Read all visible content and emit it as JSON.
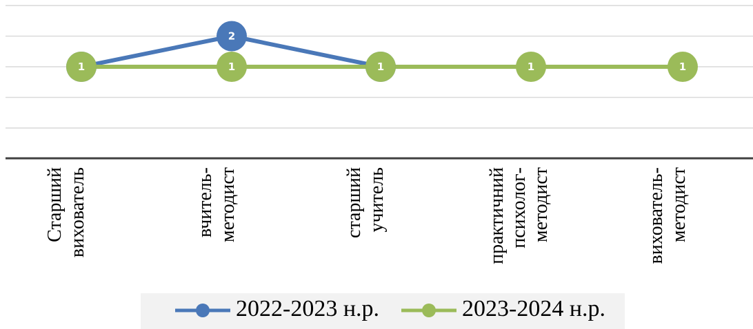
{
  "chart_data": {
    "type": "line",
    "categories": [
      [
        "Старший",
        "вихователь"
      ],
      [
        "вчитель-",
        "методист"
      ],
      [
        "старший",
        "учитель"
      ],
      [
        "практичний",
        "психолог-",
        "методист"
      ],
      [
        "вихователь-",
        "методист"
      ]
    ],
    "series": [
      {
        "name": "2022-2023 н.р.",
        "color": "#4a78b8",
        "values": [
          1,
          2,
          1,
          null,
          null
        ]
      },
      {
        "name": "2023-2024 н.р.",
        "color": "#9bbb59",
        "values": [
          1,
          1,
          1,
          1,
          1
        ]
      }
    ],
    "ylim": [
      -1,
      3
    ],
    "grid": true,
    "legend_position": "bottom",
    "data_labels": true
  }
}
